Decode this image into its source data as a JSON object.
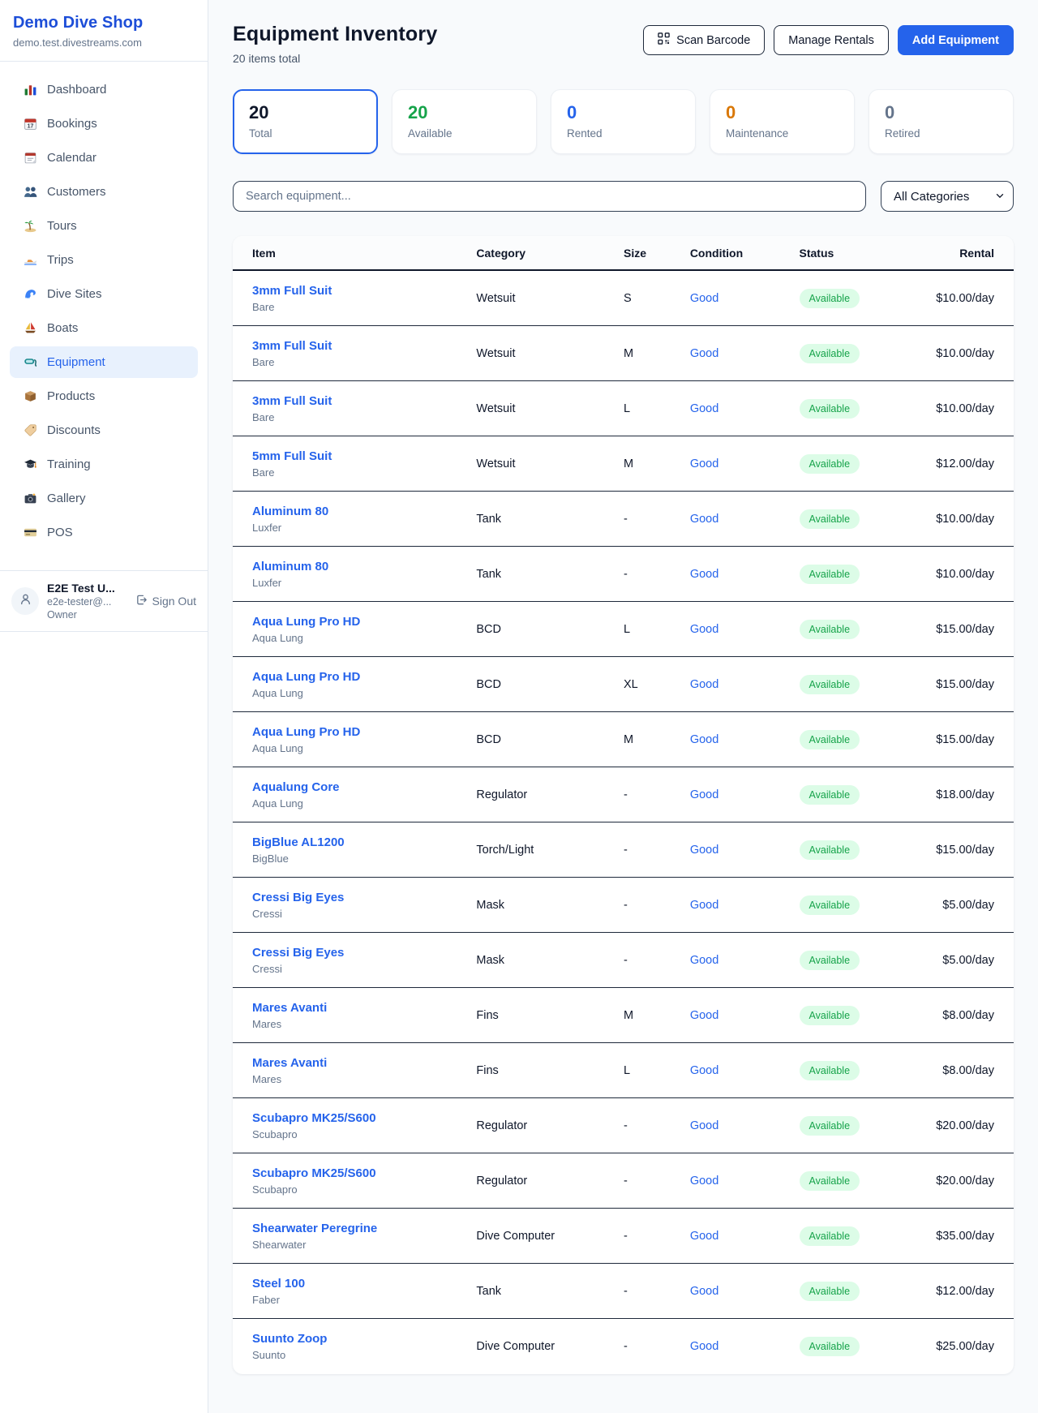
{
  "sidebar": {
    "brand": "Demo Dive Shop",
    "domain": "demo.test.divestreams.com",
    "items": [
      {
        "icon": "dashboard-icon",
        "label": "Dashboard",
        "active": false
      },
      {
        "icon": "bookings-icon",
        "label": "Bookings",
        "active": false
      },
      {
        "icon": "calendar-icon",
        "label": "Calendar",
        "active": false
      },
      {
        "icon": "customers-icon",
        "label": "Customers",
        "active": false
      },
      {
        "icon": "tours-icon",
        "label": "Tours",
        "active": false
      },
      {
        "icon": "trips-icon",
        "label": "Trips",
        "active": false
      },
      {
        "icon": "dive-sites-icon",
        "label": "Dive Sites",
        "active": false
      },
      {
        "icon": "boats-icon",
        "label": "Boats",
        "active": false
      },
      {
        "icon": "equipment-icon",
        "label": "Equipment",
        "active": true
      },
      {
        "icon": "products-icon",
        "label": "Products",
        "active": false
      },
      {
        "icon": "discounts-icon",
        "label": "Discounts",
        "active": false
      },
      {
        "icon": "training-icon",
        "label": "Training",
        "active": false
      },
      {
        "icon": "gallery-icon",
        "label": "Gallery",
        "active": false
      },
      {
        "icon": "pos-icon",
        "label": "POS",
        "active": false
      }
    ],
    "user": {
      "name": "E2E Test U...",
      "email": "e2e-tester@...",
      "role": "Owner",
      "sign_out_label": "Sign Out"
    }
  },
  "header": {
    "title": "Equipment Inventory",
    "subtitle": "20 items total",
    "scan_barcode_label": "Scan Barcode",
    "manage_rentals_label": "Manage Rentals",
    "add_equipment_label": "Add Equipment"
  },
  "stats": [
    {
      "value": "20",
      "label": "Total",
      "color": "#0f172a",
      "active": true
    },
    {
      "value": "20",
      "label": "Available",
      "color": "#16a34a",
      "active": false
    },
    {
      "value": "0",
      "label": "Rented",
      "color": "#2563eb",
      "active": false
    },
    {
      "value": "0",
      "label": "Maintenance",
      "color": "#d97706",
      "active": false
    },
    {
      "value": "0",
      "label": "Retired",
      "color": "#64748b",
      "active": false
    }
  ],
  "filters": {
    "search_placeholder": "Search equipment...",
    "category_selected": "All Categories"
  },
  "table": {
    "columns": [
      "Item",
      "Category",
      "Size",
      "Condition",
      "Status",
      "Rental"
    ],
    "rows": [
      {
        "name": "3mm Full Suit",
        "brand": "Bare",
        "category": "Wetsuit",
        "size": "S",
        "condition": "Good",
        "status": "Available",
        "rental": "$10.00/day"
      },
      {
        "name": "3mm Full Suit",
        "brand": "Bare",
        "category": "Wetsuit",
        "size": "M",
        "condition": "Good",
        "status": "Available",
        "rental": "$10.00/day"
      },
      {
        "name": "3mm Full Suit",
        "brand": "Bare",
        "category": "Wetsuit",
        "size": "L",
        "condition": "Good",
        "status": "Available",
        "rental": "$10.00/day"
      },
      {
        "name": "5mm Full Suit",
        "brand": "Bare",
        "category": "Wetsuit",
        "size": "M",
        "condition": "Good",
        "status": "Available",
        "rental": "$12.00/day"
      },
      {
        "name": "Aluminum 80",
        "brand": "Luxfer",
        "category": "Tank",
        "size": "-",
        "condition": "Good",
        "status": "Available",
        "rental": "$10.00/day"
      },
      {
        "name": "Aluminum 80",
        "brand": "Luxfer",
        "category": "Tank",
        "size": "-",
        "condition": "Good",
        "status": "Available",
        "rental": "$10.00/day"
      },
      {
        "name": "Aqua Lung Pro HD",
        "brand": "Aqua Lung",
        "category": "BCD",
        "size": "L",
        "condition": "Good",
        "status": "Available",
        "rental": "$15.00/day"
      },
      {
        "name": "Aqua Lung Pro HD",
        "brand": "Aqua Lung",
        "category": "BCD",
        "size": "XL",
        "condition": "Good",
        "status": "Available",
        "rental": "$15.00/day"
      },
      {
        "name": "Aqua Lung Pro HD",
        "brand": "Aqua Lung",
        "category": "BCD",
        "size": "M",
        "condition": "Good",
        "status": "Available",
        "rental": "$15.00/day"
      },
      {
        "name": "Aqualung Core",
        "brand": "Aqua Lung",
        "category": "Regulator",
        "size": "-",
        "condition": "Good",
        "status": "Available",
        "rental": "$18.00/day"
      },
      {
        "name": "BigBlue AL1200",
        "brand": "BigBlue",
        "category": "Torch/Light",
        "size": "-",
        "condition": "Good",
        "status": "Available",
        "rental": "$15.00/day"
      },
      {
        "name": "Cressi Big Eyes",
        "brand": "Cressi",
        "category": "Mask",
        "size": "-",
        "condition": "Good",
        "status": "Available",
        "rental": "$5.00/day"
      },
      {
        "name": "Cressi Big Eyes",
        "brand": "Cressi",
        "category": "Mask",
        "size": "-",
        "condition": "Good",
        "status": "Available",
        "rental": "$5.00/day"
      },
      {
        "name": "Mares Avanti",
        "brand": "Mares",
        "category": "Fins",
        "size": "M",
        "condition": "Good",
        "status": "Available",
        "rental": "$8.00/day"
      },
      {
        "name": "Mares Avanti",
        "brand": "Mares",
        "category": "Fins",
        "size": "L",
        "condition": "Good",
        "status": "Available",
        "rental": "$8.00/day"
      },
      {
        "name": "Scubapro MK25/S600",
        "brand": "Scubapro",
        "category": "Regulator",
        "size": "-",
        "condition": "Good",
        "status": "Available",
        "rental": "$20.00/day"
      },
      {
        "name": "Scubapro MK25/S600",
        "brand": "Scubapro",
        "category": "Regulator",
        "size": "-",
        "condition": "Good",
        "status": "Available",
        "rental": "$20.00/day"
      },
      {
        "name": "Shearwater Peregrine",
        "brand": "Shearwater",
        "category": "Dive Computer",
        "size": "-",
        "condition": "Good",
        "status": "Available",
        "rental": "$35.00/day"
      },
      {
        "name": "Steel 100",
        "brand": "Faber",
        "category": "Tank",
        "size": "-",
        "condition": "Good",
        "status": "Available",
        "rental": "$12.00/day"
      },
      {
        "name": "Suunto Zoop",
        "brand": "Suunto",
        "category": "Dive Computer",
        "size": "-",
        "condition": "Good",
        "status": "Available",
        "rental": "$25.00/day"
      }
    ]
  },
  "colors": {
    "accent": "#2563eb",
    "available_green": "#16a34a",
    "badge_bg": "#dcfce7",
    "maintenance_orange": "#d97706",
    "muted_gray": "#64748b"
  }
}
